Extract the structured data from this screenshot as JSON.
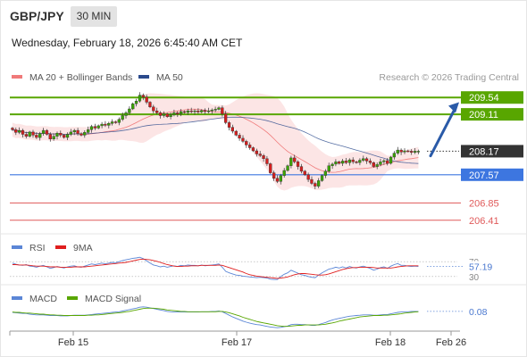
{
  "header": {
    "symbol": "GBP/JPY",
    "timeframe": "30 MIN",
    "date": "Wednesday, February 18, 2026 6:45:40 AM CET"
  },
  "legend": {
    "ma20": {
      "label": "MA 20 + Bollinger Bands",
      "color": "#f07a7a"
    },
    "ma50": {
      "label": "MA 50",
      "color": "#2b4a8c"
    },
    "credit": "Research © 2026 Trading Central"
  },
  "chart_data": [
    {
      "type": "candlestick",
      "title": "GBP/JPY",
      "ylim": [
        206.2,
        209.75
      ],
      "levels": [
        {
          "value": 209.54,
          "label": "209.54",
          "color": "#58a600",
          "kind": "resistance"
        },
        {
          "value": 209.11,
          "label": "209.11",
          "color": "#58a600",
          "kind": "resistance"
        },
        {
          "value": 208.17,
          "label": "208.17",
          "color": "#333333",
          "kind": "last"
        },
        {
          "value": 207.57,
          "label": "207.57",
          "color": "#3d76e0",
          "kind": "pivot"
        },
        {
          "value": 206.85,
          "label": "206.85",
          "color": "#e05a5a",
          "kind": "support"
        },
        {
          "value": 206.41,
          "label": "206.41",
          "color": "#e05a5a",
          "kind": "support"
        }
      ],
      "projection": {
        "from": 208.05,
        "to": 209.42
      },
      "close_series": [
        208.72,
        208.65,
        208.7,
        208.6,
        208.55,
        208.66,
        208.58,
        208.52,
        208.62,
        208.7,
        208.6,
        208.48,
        208.55,
        208.63,
        208.58,
        208.52,
        208.6,
        208.66,
        208.7,
        208.62,
        208.58,
        208.65,
        208.72,
        208.8,
        208.76,
        208.82,
        208.86,
        208.83,
        208.88,
        208.92,
        208.9,
        208.98,
        209.08,
        209.15,
        209.25,
        209.38,
        209.45,
        209.6,
        209.55,
        209.42,
        209.3,
        209.2,
        209.15,
        209.08,
        209.12,
        209.05,
        209.1,
        209.15,
        209.12,
        209.18,
        209.16,
        209.2,
        209.18,
        209.2,
        209.17,
        209.21,
        209.18,
        209.2,
        209.22,
        209.24,
        209.28,
        209.12,
        208.9,
        208.78,
        208.68,
        208.58,
        208.5,
        208.42,
        208.33,
        208.26,
        208.18,
        208.1,
        208.06,
        207.98,
        207.85,
        207.62,
        207.48,
        207.4,
        207.55,
        207.68,
        207.8,
        208.0,
        207.9,
        207.78,
        207.66,
        207.57,
        207.45,
        207.35,
        207.28,
        207.42,
        207.55,
        207.66,
        207.8,
        207.84,
        207.9,
        207.86,
        207.92,
        207.88,
        207.95,
        207.9,
        207.88,
        207.94,
        207.98,
        207.92,
        207.88,
        207.78,
        207.83,
        207.9,
        207.93,
        207.86,
        208.02,
        208.12,
        208.2,
        208.15,
        208.18,
        208.17,
        208.14,
        208.17,
        208.17
      ],
      "y_labels_visible": [
        "209.54",
        "209.11",
        "208.17",
        "207.57",
        "206.85",
        "206.41"
      ]
    },
    {
      "type": "line",
      "title": "RSI",
      "series": [
        {
          "name": "RSI",
          "color": "#5b86d6"
        },
        {
          "name": "9MA",
          "color": "#e01e1e"
        }
      ],
      "ylim": [
        20,
        80
      ],
      "reference_lines": [
        70,
        30
      ],
      "tick_labels": [
        "70",
        "30"
      ],
      "last_value": "57.19",
      "rsi_values": [
        66,
        63,
        61,
        60,
        62,
        58,
        57,
        55,
        58,
        60,
        56,
        52,
        54,
        57,
        55,
        53,
        56,
        58,
        59,
        56,
        55,
        58,
        61,
        64,
        62,
        64,
        66,
        64,
        66,
        68,
        67,
        70,
        73,
        75,
        77,
        79,
        80,
        82,
        78,
        72,
        66,
        61,
        59,
        56,
        58,
        55,
        57,
        59,
        57,
        60,
        59,
        61,
        60,
        60,
        59,
        61,
        59,
        60,
        61,
        62,
        64,
        55,
        44,
        40,
        37,
        34,
        33,
        31,
        30,
        29,
        28,
        27,
        28,
        27,
        26,
        23,
        22,
        22,
        30,
        36,
        40,
        47,
        43,
        39,
        35,
        33,
        30,
        28,
        27,
        34,
        40,
        45,
        50,
        52,
        55,
        53,
        56,
        53,
        57,
        54,
        53,
        56,
        58,
        55,
        52,
        47,
        50,
        54,
        56,
        52,
        58,
        62,
        65,
        60,
        60,
        58,
        57,
        58,
        57.19
      ],
      "ma9_values": [
        62,
        62,
        61,
        61,
        61,
        60,
        59,
        58,
        58,
        58,
        57,
        56,
        56,
        56,
        55,
        55,
        55,
        55,
        56,
        56,
        56,
        56,
        57,
        58,
        59,
        60,
        61,
        62,
        63,
        64,
        65,
        66,
        67,
        68,
        70,
        72,
        74,
        76,
        77,
        76,
        75,
        73,
        71,
        68,
        65,
        62,
        60,
        58,
        57,
        57,
        58,
        58,
        59,
        59,
        59,
        60,
        60,
        60,
        60,
        60,
        61,
        60,
        57,
        54,
        51,
        48,
        45,
        42,
        38,
        35,
        33,
        31,
        30,
        29,
        28,
        27,
        26,
        25,
        26,
        27,
        29,
        32,
        35,
        37,
        38,
        38,
        37,
        36,
        35,
        34,
        34,
        35,
        37,
        40,
        43,
        46,
        49,
        51,
        53,
        54,
        54,
        55,
        55,
        55,
        55,
        54,
        53,
        53,
        53,
        53,
        53,
        54,
        56,
        57,
        58,
        59,
        59,
        59,
        59
      ]
    },
    {
      "type": "line",
      "title": "MACD",
      "series": [
        {
          "name": "MACD",
          "color": "#5b86d6"
        },
        {
          "name": "MACD Signal",
          "color": "#58a600"
        }
      ],
      "last_value": "0.08",
      "macd_values": [
        0.05,
        0.04,
        0.03,
        0.02,
        0.02,
        0.0,
        -0.01,
        -0.02,
        -0.02,
        -0.02,
        -0.03,
        -0.04,
        -0.04,
        -0.04,
        -0.05,
        -0.05,
        -0.05,
        -0.04,
        -0.03,
        -0.03,
        -0.03,
        -0.03,
        -0.02,
        -0.01,
        0.0,
        0.01,
        0.02,
        0.03,
        0.04,
        0.05,
        0.06,
        0.07,
        0.09,
        0.11,
        0.13,
        0.15,
        0.17,
        0.2,
        0.21,
        0.2,
        0.18,
        0.16,
        0.14,
        0.12,
        0.1,
        0.08,
        0.07,
        0.06,
        0.06,
        0.06,
        0.06,
        0.06,
        0.06,
        0.06,
        0.06,
        0.07,
        0.07,
        0.07,
        0.08,
        0.08,
        0.09,
        0.07,
        0.02,
        -0.03,
        -0.08,
        -0.12,
        -0.16,
        -0.2,
        -0.23,
        -0.26,
        -0.28,
        -0.3,
        -0.31,
        -0.33,
        -0.35,
        -0.37,
        -0.38,
        -0.39,
        -0.38,
        -0.36,
        -0.34,
        -0.3,
        -0.29,
        -0.29,
        -0.3,
        -0.3,
        -0.31,
        -0.32,
        -0.32,
        -0.3,
        -0.27,
        -0.24,
        -0.2,
        -0.17,
        -0.14,
        -0.12,
        -0.1,
        -0.08,
        -0.06,
        -0.05,
        -0.04,
        -0.03,
        -0.02,
        -0.02,
        -0.02,
        -0.03,
        -0.03,
        -0.02,
        -0.01,
        -0.01,
        0.01,
        0.03,
        0.05,
        0.06,
        0.07,
        0.07,
        0.08,
        0.08,
        0.08
      ],
      "signal_values": [
        0.06,
        0.05,
        0.05,
        0.04,
        0.03,
        0.03,
        0.02,
        0.01,
        0.0,
        0.0,
        -0.01,
        -0.02,
        -0.02,
        -0.03,
        -0.03,
        -0.04,
        -0.04,
        -0.04,
        -0.04,
        -0.04,
        -0.04,
        -0.04,
        -0.03,
        -0.03,
        -0.02,
        -0.02,
        -0.01,
        0.0,
        0.01,
        0.02,
        0.03,
        0.04,
        0.05,
        0.07,
        0.08,
        0.1,
        0.12,
        0.14,
        0.16,
        0.17,
        0.17,
        0.17,
        0.16,
        0.15,
        0.14,
        0.12,
        0.11,
        0.1,
        0.09,
        0.08,
        0.08,
        0.07,
        0.07,
        0.07,
        0.07,
        0.07,
        0.07,
        0.07,
        0.07,
        0.07,
        0.08,
        0.08,
        0.06,
        0.04,
        0.01,
        -0.02,
        -0.05,
        -0.09,
        -0.12,
        -0.15,
        -0.18,
        -0.21,
        -0.23,
        -0.25,
        -0.27,
        -0.29,
        -0.31,
        -0.33,
        -0.34,
        -0.35,
        -0.35,
        -0.34,
        -0.33,
        -0.32,
        -0.32,
        -0.31,
        -0.31,
        -0.31,
        -0.31,
        -0.31,
        -0.3,
        -0.29,
        -0.27,
        -0.25,
        -0.23,
        -0.2,
        -0.18,
        -0.16,
        -0.14,
        -0.12,
        -0.1,
        -0.08,
        -0.07,
        -0.06,
        -0.05,
        -0.04,
        -0.04,
        -0.04,
        -0.03,
        -0.03,
        -0.02,
        -0.01,
        0.0,
        0.01,
        0.03,
        0.04,
        0.05,
        0.06,
        0.07
      ]
    }
  ],
  "x_axis": {
    "ticks": [
      {
        "label": "Feb 15",
        "index": 20
      },
      {
        "label": "Feb 17",
        "index": 78
      },
      {
        "label": "Feb 18",
        "index": 130
      },
      {
        "label": "Feb 26",
        "index": 153
      }
    ],
    "total_slots": 158
  }
}
